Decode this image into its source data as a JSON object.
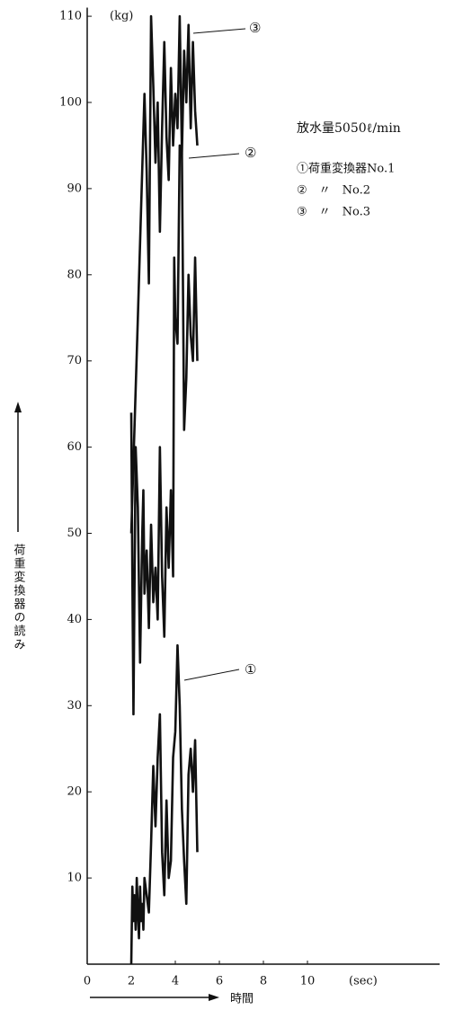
{
  "chart_data": {
    "type": "line",
    "y_unit": "(kg)",
    "x_unit": "(sec)",
    "x_label": "時間",
    "y_label": "荷重変換器の読み",
    "note": "放水量5050ℓ/min",
    "xlim": [
      0,
      16
    ],
    "xticks": [
      0,
      2,
      4,
      6,
      8,
      10
    ],
    "ylim": [
      0,
      111
    ],
    "yticks": [
      10,
      20,
      30,
      40,
      50,
      60,
      70,
      80,
      90,
      100,
      110
    ],
    "annotations": [
      "①",
      "②",
      "③"
    ],
    "series": [
      {
        "name": "①荷重変換器No.1",
        "color": "#111111",
        "x": [
          2.0,
          2.05,
          2.1,
          2.15,
          2.2,
          2.25,
          2.3,
          2.35,
          2.4,
          2.45,
          2.5,
          2.55,
          2.6,
          2.7,
          2.8,
          2.9,
          3.0,
          3.1,
          3.2,
          3.3,
          3.4,
          3.5,
          3.6,
          3.7,
          3.8,
          3.9,
          4.0,
          4.1,
          4.2,
          4.3,
          4.4,
          4.5,
          4.6,
          4.7,
          4.8,
          4.9,
          5.0
        ],
        "values": [
          0,
          9,
          5,
          8,
          4,
          10,
          6,
          3,
          9,
          5,
          7,
          4,
          10,
          8,
          6,
          14,
          23,
          16,
          24,
          29,
          13,
          8,
          19,
          10,
          12,
          24,
          27,
          37,
          30,
          18,
          12,
          7,
          22,
          25,
          20,
          26,
          13
        ]
      },
      {
        "name": "②　〃　No.2",
        "color": "#111111",
        "x": [
          2.0,
          2.05,
          2.1,
          2.2,
          2.3,
          2.4,
          2.5,
          2.55,
          2.6,
          2.7,
          2.8,
          2.9,
          3.0,
          3.1,
          3.2,
          3.3,
          3.4,
          3.5,
          3.6,
          3.7,
          3.8,
          3.9,
          3.95,
          4.0,
          4.1,
          4.2,
          4.3,
          4.4,
          4.5,
          4.6,
          4.7,
          4.8,
          4.9,
          5.0
        ],
        "values": [
          64,
          45,
          29,
          60,
          53,
          35,
          50,
          55,
          43,
          48,
          39,
          51,
          42,
          46,
          40,
          60,
          45,
          38,
          53,
          46,
          55,
          45,
          82,
          75,
          72,
          95,
          94,
          62,
          68,
          80,
          73,
          70,
          82,
          70
        ]
      },
      {
        "name": "③　〃　No.3",
        "color": "#111111",
        "x": [
          2.0,
          2.3,
          2.6,
          2.7,
          2.8,
          2.9,
          3.0,
          3.1,
          3.2,
          3.3,
          3.4,
          3.5,
          3.6,
          3.7,
          3.8,
          3.9,
          4.0,
          4.1,
          4.2,
          4.3,
          4.4,
          4.5,
          4.6,
          4.7,
          4.8,
          4.9,
          5.0
        ],
        "values": [
          50,
          75,
          101,
          92,
          79,
          110,
          102,
          93,
          100,
          85,
          97,
          107,
          96,
          91,
          104,
          95,
          101,
          97,
          110,
          94,
          106,
          100,
          109,
          97,
          107,
          99,
          95
        ]
      }
    ]
  }
}
